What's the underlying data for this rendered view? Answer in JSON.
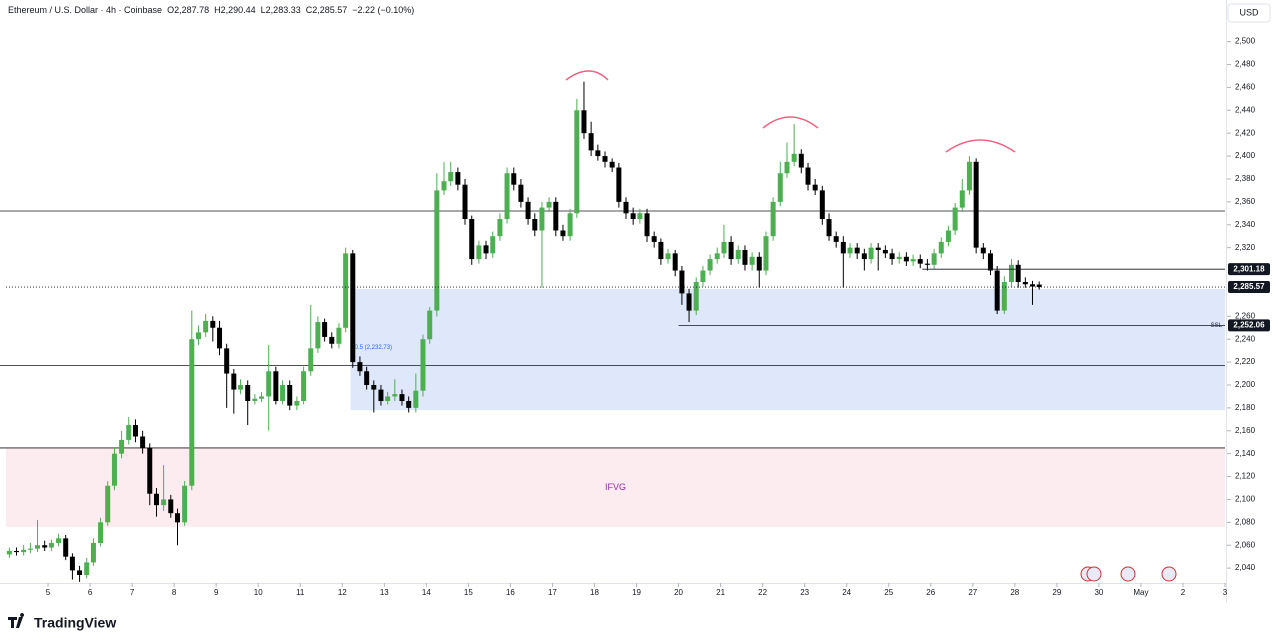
{
  "chart_data": {
    "type": "candlestick",
    "header": {
      "symbol": "Ethereum / U.S. Dollar · 4h · Coinbase",
      "open": "O2,287.78",
      "high": "H2,290.44",
      "low": "L2,283.33",
      "close": "C2,285.57",
      "change": "−2.22 (−0.10%)"
    },
    "currency": "USD",
    "up_color": "#4caf50",
    "down_color": "#000000",
    "xlim": [
      4,
      33
    ],
    "ylim": [
      2027,
      2532
    ],
    "xticks": [
      5,
      6,
      7,
      8,
      9,
      10,
      11,
      12,
      13,
      14,
      15,
      16,
      17,
      18,
      19,
      20,
      21,
      22,
      23,
      24,
      25,
      26,
      27,
      28,
      29,
      30,
      {
        "value": 31,
        "label": "May"
      },
      {
        "value": 32,
        "label": "2"
      },
      {
        "value": 33,
        "label": "3"
      }
    ],
    "yticks": [
      {
        "value": 2040,
        "label": "2,040"
      },
      {
        "value": 2060,
        "label": "2,060"
      },
      {
        "value": 2080,
        "label": "2,080"
      },
      {
        "value": 2100,
        "label": "2,100"
      },
      {
        "value": 2120,
        "label": "2,120"
      },
      {
        "value": 2140,
        "label": "2,140"
      },
      {
        "value": 2160,
        "label": "2,160"
      },
      {
        "value": 2180,
        "label": "2,180"
      },
      {
        "value": 2200,
        "label": "2,200"
      },
      {
        "value": 2220,
        "label": "2,220"
      },
      {
        "value": 2240,
        "label": "2,240"
      },
      {
        "value": 2260,
        "label": "2,260"
      },
      {
        "value": 2320,
        "label": "2,320"
      },
      {
        "value": 2340,
        "label": "2,340"
      },
      {
        "value": 2360,
        "label": "2,360"
      },
      {
        "value": 2380,
        "label": "2,380"
      },
      {
        "value": 2400,
        "label": "2,400"
      },
      {
        "value": 2420,
        "label": "2,420"
      },
      {
        "value": 2440,
        "label": "2,440"
      },
      {
        "value": 2460,
        "label": "2,460"
      },
      {
        "value": 2480,
        "label": "2,480"
      },
      {
        "value": 2500,
        "label": "2,500"
      }
    ],
    "levels": [
      2352,
      2217,
      2145
    ],
    "zones": [
      {
        "from": 12.2,
        "top": 2284,
        "bottom": 2178,
        "color": "#dfe7fb",
        "label": "0.5 (2,232.73)",
        "label_value": 2232.73
      },
      {
        "from": 4,
        "top": 2145,
        "bottom": 2076,
        "color": "#fdecef",
        "label": "IFVG"
      }
    ],
    "price_labels": [
      {
        "value": 2301.18,
        "label": "2,301.18",
        "from": 25.8
      },
      {
        "value": 2285.57,
        "label": "2,285.57",
        "from": 4
      },
      {
        "value": 2252.06,
        "label": "2,252.06",
        "from": 20,
        "tag": "SSL"
      }
    ],
    "brand": "TradingView",
    "x": [
      4.08,
      4.25,
      4.42,
      4.58,
      4.75,
      4.92,
      5.08,
      5.25,
      5.42,
      5.58,
      5.75,
      5.92,
      6.08,
      6.25,
      6.42,
      6.58,
      6.75,
      6.92,
      7.08,
      7.25,
      7.42,
      7.58,
      7.75,
      7.92,
      8.08,
      8.25,
      8.42,
      8.58,
      8.75,
      8.92,
      9.08,
      9.25,
      9.42,
      9.58,
      9.75,
      9.92,
      10.08,
      10.25,
      10.42,
      10.58,
      10.75,
      10.92,
      11.08,
      11.25,
      11.42,
      11.58,
      11.75,
      11.92,
      12.08,
      12.25,
      12.42,
      12.58,
      12.75,
      12.92,
      13.08,
      13.25,
      13.42,
      13.58,
      13.75,
      13.92,
      14.08,
      14.25,
      14.42,
      14.58,
      14.75,
      14.92,
      15.08,
      15.25,
      15.42,
      15.58,
      15.75,
      15.92,
      16.08,
      16.25,
      16.42,
      16.58,
      16.75,
      16.92,
      17.08,
      17.25,
      17.42,
      17.58,
      17.75,
      17.92,
      18.08,
      18.25,
      18.42,
      18.58,
      18.75,
      18.92,
      19.08,
      19.25,
      19.42,
      19.58,
      19.75,
      19.92,
      20.08,
      20.25,
      20.42,
      20.58,
      20.75,
      20.92,
      21.08,
      21.25,
      21.42,
      21.58,
      21.75,
      21.92,
      22.08,
      22.25,
      22.42,
      22.58,
      22.75,
      22.92,
      23.08,
      23.25,
      23.42,
      23.58,
      23.75,
      23.92,
      24.08,
      24.25,
      24.42,
      24.58,
      24.75,
      24.92,
      25.08,
      25.25,
      25.42,
      25.58,
      25.75,
      25.92,
      26.08,
      26.25,
      26.42,
      26.58,
      26.75,
      26.92,
      27.08,
      27.25,
      27.42,
      27.58,
      27.75,
      27.92,
      28.08,
      28.25,
      28.42,
      28.58
    ],
    "candles": [
      [
        2052,
        2058,
        2049,
        2055
      ],
      [
        2055,
        2058,
        2051,
        2054
      ],
      [
        2054,
        2060,
        2051,
        2056
      ],
      [
        2056,
        2062,
        2053,
        2057
      ],
      [
        2057,
        2082,
        2054,
        2060
      ],
      [
        2060,
        2064,
        2055,
        2058
      ],
      [
        2058,
        2065,
        2055,
        2062
      ],
      [
        2062,
        2070,
        2059,
        2066
      ],
      [
        2066,
        2069,
        2047,
        2050
      ],
      [
        2050,
        2053,
        2030,
        2038
      ],
      [
        2038,
        2042,
        2028,
        2034
      ],
      [
        2034,
        2049,
        2031,
        2045
      ],
      [
        2045,
        2066,
        2042,
        2062
      ],
      [
        2062,
        2084,
        2059,
        2080
      ],
      [
        2080,
        2116,
        2077,
        2112
      ],
      [
        2112,
        2145,
        2108,
        2140
      ],
      [
        2140,
        2160,
        2136,
        2152
      ],
      [
        2152,
        2172,
        2148,
        2165
      ],
      [
        2165,
        2170,
        2150,
        2155
      ],
      [
        2155,
        2160,
        2140,
        2145
      ],
      [
        2145,
        2149,
        2095,
        2105
      ],
      [
        2105,
        2110,
        2085,
        2095
      ],
      [
        2095,
        2130,
        2090,
        2100
      ],
      [
        2100,
        2104,
        2084,
        2088
      ],
      [
        2088,
        2092,
        2060,
        2080
      ],
      [
        2080,
        2116,
        2077,
        2112
      ],
      [
        2112,
        2265,
        2108,
        2240
      ],
      [
        2240,
        2252,
        2235,
        2246
      ],
      [
        2246,
        2262,
        2242,
        2256
      ],
      [
        2256,
        2260,
        2238,
        2250
      ],
      [
        2250,
        2256,
        2226,
        2232
      ],
      [
        2232,
        2236,
        2180,
        2210
      ],
      [
        2210,
        2214,
        2175,
        2196
      ],
      [
        2196,
        2205,
        2192,
        2200
      ],
      [
        2200,
        2204,
        2165,
        2186
      ],
      [
        2186,
        2192,
        2183,
        2188
      ],
      [
        2188,
        2194,
        2185,
        2190
      ],
      [
        2190,
        2235,
        2160,
        2212
      ],
      [
        2212,
        2216,
        2183,
        2186
      ],
      [
        2186,
        2204,
        2183,
        2200
      ],
      [
        2200,
        2204,
        2178,
        2182
      ],
      [
        2182,
        2190,
        2178,
        2186
      ],
      [
        2186,
        2216,
        2183,
        2212
      ],
      [
        2212,
        2270,
        2208,
        2232
      ],
      [
        2232,
        2260,
        2228,
        2255
      ],
      [
        2255,
        2258,
        2238,
        2242
      ],
      [
        2242,
        2246,
        2232,
        2236
      ],
      [
        2236,
        2254,
        2232,
        2250
      ],
      [
        2250,
        2320,
        2246,
        2315
      ],
      [
        2315,
        2318,
        2215,
        2220
      ],
      [
        2220,
        2225,
        2208,
        2212
      ],
      [
        2212,
        2216,
        2196,
        2200
      ],
      [
        2200,
        2204,
        2176,
        2196
      ],
      [
        2196,
        2200,
        2182,
        2186
      ],
      [
        2186,
        2194,
        2183,
        2190
      ],
      [
        2190,
        2205,
        2186,
        2192
      ],
      [
        2192,
        2196,
        2182,
        2186
      ],
      [
        2186,
        2190,
        2176,
        2180
      ],
      [
        2180,
        2210,
        2176,
        2195
      ],
      [
        2195,
        2244,
        2190,
        2240
      ],
      [
        2240,
        2268,
        2236,
        2265
      ],
      [
        2265,
        2385,
        2260,
        2370
      ],
      [
        2370,
        2395,
        2366,
        2378
      ],
      [
        2378,
        2395,
        2374,
        2386
      ],
      [
        2386,
        2390,
        2370,
        2375
      ],
      [
        2375,
        2380,
        2340,
        2345
      ],
      [
        2345,
        2348,
        2305,
        2310
      ],
      [
        2310,
        2326,
        2306,
        2322
      ],
      [
        2322,
        2326,
        2310,
        2315
      ],
      [
        2315,
        2334,
        2311,
        2330
      ],
      [
        2330,
        2350,
        2326,
        2345
      ],
      [
        2345,
        2390,
        2341,
        2385
      ],
      [
        2385,
        2390,
        2370,
        2375
      ],
      [
        2375,
        2380,
        2355,
        2360
      ],
      [
        2360,
        2364,
        2340,
        2345
      ],
      [
        2345,
        2350,
        2330,
        2335
      ],
      [
        2335,
        2360,
        2285,
        2355
      ],
      [
        2355,
        2364,
        2351,
        2360
      ],
      [
        2360,
        2364,
        2330,
        2335
      ],
      [
        2335,
        2340,
        2326,
        2330
      ],
      [
        2330,
        2354,
        2326,
        2350
      ],
      [
        2350,
        2450,
        2346,
        2440
      ],
      [
        2440,
        2465,
        2415,
        2420
      ],
      [
        2420,
        2430,
        2400,
        2405
      ],
      [
        2405,
        2410,
        2396,
        2400
      ],
      [
        2400,
        2404,
        2390,
        2395
      ],
      [
        2395,
        2398,
        2386,
        2390
      ],
      [
        2390,
        2394,
        2355,
        2360
      ],
      [
        2360,
        2364,
        2345,
        2350
      ],
      [
        2350,
        2355,
        2340,
        2345
      ],
      [
        2345,
        2354,
        2341,
        2350
      ],
      [
        2350,
        2354,
        2325,
        2330
      ],
      [
        2330,
        2334,
        2320,
        2325
      ],
      [
        2325,
        2328,
        2305,
        2310
      ],
      [
        2310,
        2319,
        2306,
        2315
      ],
      [
        2315,
        2318,
        2295,
        2300
      ],
      [
        2300,
        2304,
        2270,
        2280
      ],
      [
        2280,
        2284,
        2255,
        2265
      ],
      [
        2265,
        2294,
        2261,
        2290
      ],
      [
        2290,
        2304,
        2286,
        2300
      ],
      [
        2300,
        2314,
        2296,
        2310
      ],
      [
        2310,
        2320,
        2306,
        2315
      ],
      [
        2315,
        2340,
        2311,
        2325
      ],
      [
        2325,
        2330,
        2305,
        2310
      ],
      [
        2310,
        2322,
        2306,
        2318
      ],
      [
        2318,
        2322,
        2300,
        2305
      ],
      [
        2305,
        2316,
        2300,
        2312
      ],
      [
        2312,
        2316,
        2285,
        2300
      ],
      [
        2300,
        2334,
        2296,
        2330
      ],
      [
        2330,
        2364,
        2326,
        2360
      ],
      [
        2360,
        2395,
        2356,
        2385
      ],
      [
        2385,
        2412,
        2381,
        2395
      ],
      [
        2395,
        2428,
        2391,
        2402
      ],
      [
        2402,
        2406,
        2385,
        2390
      ],
      [
        2390,
        2394,
        2370,
        2375
      ],
      [
        2375,
        2380,
        2366,
        2370
      ],
      [
        2370,
        2374,
        2340,
        2345
      ],
      [
        2345,
        2350,
        2326,
        2330
      ],
      [
        2330,
        2334,
        2320,
        2325
      ],
      [
        2325,
        2330,
        2285,
        2315
      ],
      [
        2315,
        2324,
        2311,
        2320
      ],
      [
        2320,
        2324,
        2310,
        2315
      ],
      [
        2315,
        2319,
        2300,
        2310
      ],
      [
        2310,
        2324,
        2306,
        2320
      ],
      [
        2320,
        2324,
        2300,
        2318
      ],
      [
        2318,
        2322,
        2311,
        2315
      ],
      [
        2315,
        2319,
        2305,
        2310
      ],
      [
        2310,
        2316,
        2306,
        2312
      ],
      [
        2312,
        2316,
        2304,
        2308
      ],
      [
        2308,
        2314,
        2304,
        2310
      ],
      [
        2310,
        2314,
        2302,
        2306
      ],
      [
        2306,
        2310,
        2300,
        2305
      ],
      [
        2305,
        2319,
        2301,
        2315
      ],
      [
        2315,
        2329,
        2311,
        2325
      ],
      [
        2325,
        2339,
        2321,
        2335
      ],
      [
        2335,
        2359,
        2331,
        2355
      ],
      [
        2355,
        2380,
        2351,
        2370
      ],
      [
        2370,
        2400,
        2366,
        2395
      ],
      [
        2395,
        2398,
        2315,
        2320
      ],
      [
        2320,
        2324,
        2310,
        2315
      ],
      [
        2315,
        2318,
        2296,
        2300
      ],
      [
        2300,
        2304,
        2262,
        2265
      ],
      [
        2265,
        2295,
        2262,
        2290
      ],
      [
        2290,
        2310,
        2286,
        2305
      ],
      [
        2305,
        2309,
        2285,
        2290
      ],
      [
        2290,
        2294,
        2285,
        2288
      ],
      [
        2288,
        2291,
        2270,
        2286
      ],
      [
        2287.78,
        2290.44,
        2283.33,
        2285.57
      ]
    ]
  }
}
